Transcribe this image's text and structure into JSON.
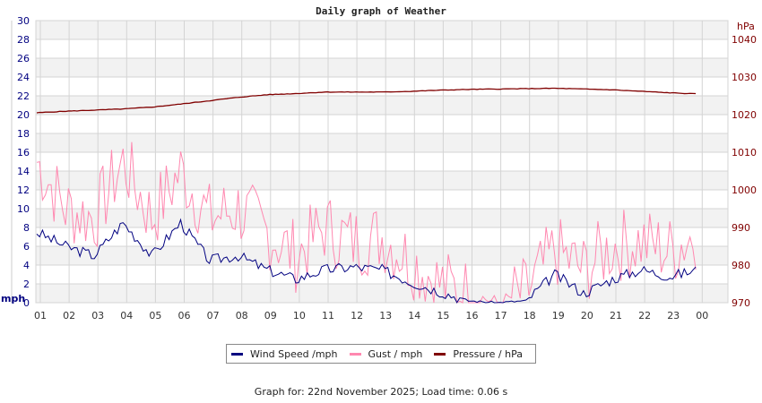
{
  "title": "Daily graph of Weather",
  "footer": "Graph for: 22nd November 2025; Load time: 0.06 s",
  "legend": [
    {
      "label": "Wind Speed /mph",
      "color": "#000080"
    },
    {
      "label": "Gust / mph",
      "color": "#ff88b0"
    },
    {
      "label": "Pressure / hPa",
      "color": "#800000"
    }
  ],
  "axes": {
    "left_unit": "mph",
    "right_unit": "hPa",
    "left_ticks": [
      "0",
      "2",
      "4",
      "6",
      "8",
      "10",
      "12",
      "14",
      "16",
      "18",
      "20",
      "22",
      "24",
      "26",
      "28",
      "30"
    ],
    "right_ticks": [
      "970",
      "980",
      "990",
      "1000",
      "1010",
      "1020",
      "1030",
      "1040"
    ],
    "x_ticks": [
      "01",
      "02",
      "03",
      "04",
      "05",
      "06",
      "07",
      "08",
      "09",
      "10",
      "11",
      "12",
      "13",
      "14",
      "15",
      "16",
      "17",
      "18",
      "19",
      "20",
      "21",
      "22",
      "23",
      "00"
    ]
  },
  "chart_data": {
    "type": "line",
    "title": "Daily graph of Weather",
    "xlabel": "Hour",
    "ylabel": "mph",
    "y2label": "hPa",
    "ylim": [
      0,
      30
    ],
    "y2lim": [
      970,
      1045
    ],
    "grid": true,
    "legend_position": "bottom",
    "categories": [
      "01",
      "02",
      "03",
      "04",
      "05",
      "06",
      "07",
      "08",
      "09",
      "10",
      "11",
      "12",
      "13",
      "14",
      "15",
      "16",
      "17",
      "18",
      "19",
      "20",
      "21",
      "22",
      "23",
      "00"
    ],
    "series": [
      {
        "name": "Wind Speed /mph",
        "axis": "left",
        "color": "#000080",
        "values": [
          7.5,
          6.0,
          5.0,
          8.5,
          5.0,
          8.5,
          4.5,
          5.0,
          3.5,
          2.5,
          3.5,
          3.8,
          3.5,
          2.2,
          1.2,
          0.2,
          0.0,
          0.2,
          3.0,
          1.0,
          2.5,
          3.5,
          2.8,
          3.5
        ]
      },
      {
        "name": "Gust / mph",
        "axis": "left",
        "color": "#ff88b0",
        "values": [
          15.0,
          10.0,
          9.0,
          15.0,
          9.0,
          14.0,
          9.0,
          10.0,
          7.5,
          5.0,
          8.0,
          6.5,
          7.0,
          4.5,
          2.0,
          1.0,
          0.0,
          1.0,
          5.5,
          3.5,
          6.0,
          6.5,
          5.5,
          7.5
        ]
      },
      {
        "name": "Pressure / hPa",
        "axis": "right",
        "color": "#800000",
        "values": [
          1020.5,
          1020.9,
          1021.2,
          1021.5,
          1022.0,
          1022.8,
          1023.7,
          1024.6,
          1025.3,
          1025.6,
          1026.0,
          1026.0,
          1026.0,
          1026.2,
          1026.5,
          1026.7,
          1026.8,
          1026.9,
          1027.0,
          1026.8,
          1026.6,
          1026.2,
          1025.8,
          1025.5
        ]
      }
    ]
  }
}
